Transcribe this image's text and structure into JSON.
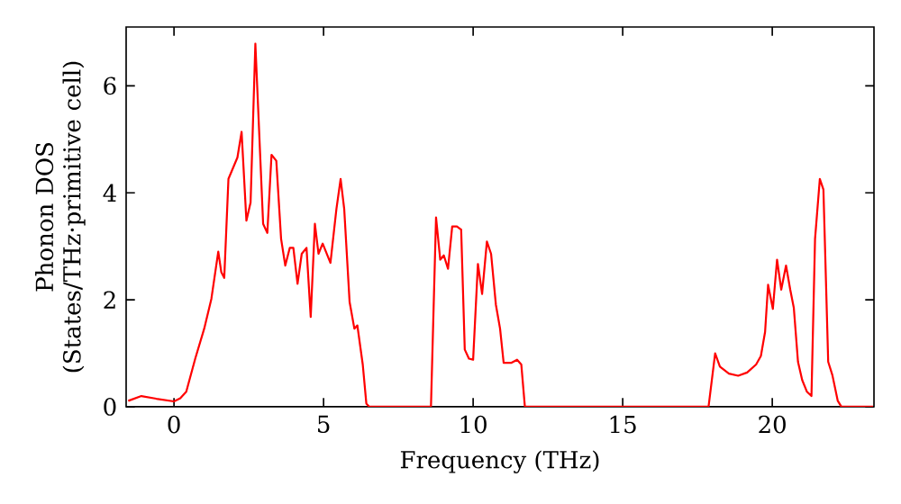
{
  "chart_data": {
    "type": "line",
    "xlabel": "Frequency (THz)",
    "ylabel": "Phonon DOS (States/THz·primitive cell)",
    "xlim": [
      -1.6,
      23.4
    ],
    "ylim": [
      0,
      7.1
    ],
    "xticks": [
      0,
      5,
      10,
      15,
      20
    ],
    "yticks": [
      0,
      2,
      4,
      6
    ],
    "marker": "none",
    "line_style": "solid",
    "series": [
      {
        "color": "#ff0000",
        "x": [
          -1.53,
          -1.09,
          -0.59,
          0,
          0.21,
          0.41,
          0.71,
          1.01,
          1.25,
          1.48,
          1.58,
          1.68,
          1.82,
          2.12,
          2.26,
          2.42,
          2.56,
          2.72,
          2.98,
          3.12,
          3.26,
          3.42,
          3.58,
          3.72,
          3.87,
          3.99,
          4.13,
          4.27,
          4.43,
          4.57,
          4.71,
          4.83,
          4.97,
          5.23,
          5.43,
          5.57,
          5.69,
          5.87,
          6.03,
          6.13,
          6.31,
          6.43,
          6.53,
          8.55,
          8.59,
          8.76,
          8.9,
          9.02,
          9.16,
          9.3,
          9.46,
          9.6,
          9.72,
          9.86,
          10,
          10.16,
          10.3,
          10.46,
          10.6,
          10.76,
          10.9,
          11.02,
          11.27,
          11.47,
          11.61,
          11.73,
          17.87,
          18.09,
          18.25,
          18.55,
          18.86,
          19.16,
          19.46,
          19.62,
          19.76,
          19.86,
          20.02,
          20.16,
          20.3,
          20.46,
          20.6,
          20.72,
          20.86,
          21.0,
          21.16,
          21.31,
          21.43,
          21.59,
          21.71,
          21.87,
          22.01,
          22.19,
          22.31,
          23.37
        ],
        "values": [
          0.11,
          0.2,
          0.15,
          0.1,
          0.16,
          0.28,
          0.9,
          1.46,
          2.02,
          2.9,
          2.52,
          2.41,
          4.26,
          4.66,
          5.14,
          3.48,
          3.82,
          6.79,
          3.42,
          3.25,
          4.71,
          4.6,
          3.14,
          2.64,
          2.97,
          2.97,
          2.3,
          2.86,
          2.97,
          1.68,
          3.42,
          2.86,
          3.05,
          2.69,
          3.7,
          4.26,
          3.7,
          1.96,
          1.46,
          1.52,
          0.79,
          0.06,
          0,
          0,
          0,
          3.54,
          2.75,
          2.83,
          2.58,
          3.37,
          3.37,
          3.31,
          1.07,
          0.9,
          0.88,
          2.67,
          2.11,
          3.09,
          2.86,
          1.91,
          1.46,
          0.82,
          0.82,
          0.88,
          0.79,
          0,
          0,
          1.0,
          0.75,
          0.62,
          0.58,
          0.64,
          0.79,
          0.95,
          1.4,
          2.28,
          1.83,
          2.75,
          2.19,
          2.64,
          2.19,
          1.85,
          0.84,
          0.5,
          0.28,
          0.2,
          3.14,
          4.26,
          4.06,
          0.84,
          0.59,
          0.11,
          0,
          0
        ]
      }
    ]
  }
}
